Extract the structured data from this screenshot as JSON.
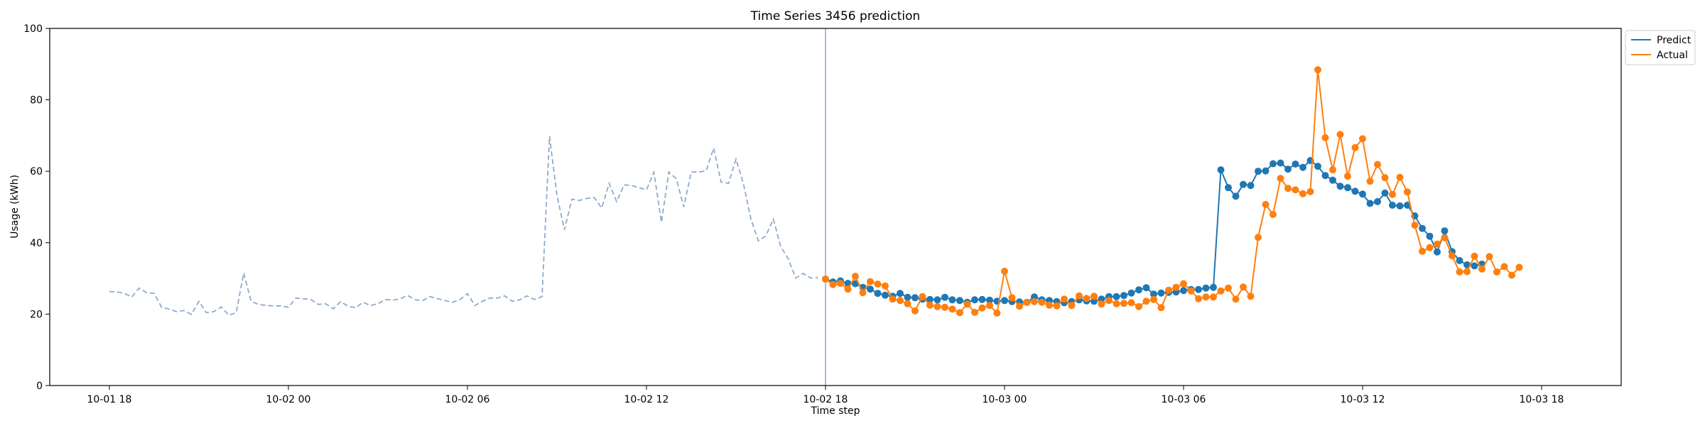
{
  "chart_data": {
    "type": "line",
    "title": "Time Series 3456 prediction",
    "xlabel": "Time step",
    "ylabel": "Usage (kWh)",
    "ylim": [
      0,
      100
    ],
    "xlim": [
      "2024-10-01 16:00",
      "2024-10-03 20:40"
    ],
    "xticks": [
      {
        "t": "2024-10-01 18:00",
        "label": "10-01 18"
      },
      {
        "t": "2024-10-02 00:00",
        "label": "10-02 00"
      },
      {
        "t": "2024-10-02 06:00",
        "label": "10-02 06"
      },
      {
        "t": "2024-10-02 12:00",
        "label": "10-02 12"
      },
      {
        "t": "2024-10-02 18:00",
        "label": "10-02 18"
      },
      {
        "t": "2024-10-03 00:00",
        "label": "10-03 00"
      },
      {
        "t": "2024-10-03 06:00",
        "label": "10-03 06"
      },
      {
        "t": "2024-10-03 12:00",
        "label": "10-03 12"
      },
      {
        "t": "2024-10-03 18:00",
        "label": "10-03 18"
      }
    ],
    "yticks": [
      0,
      20,
      40,
      60,
      80,
      100
    ],
    "vline": "2024-10-02 18:00",
    "grid": false,
    "legend_position": "outside-top-right",
    "history": {
      "start": "2024-10-01 18:00",
      "step_minutes": 15,
      "color": "#8faacc",
      "style": "dashed",
      "values": [
        26.3,
        26.2,
        25.8,
        24.8,
        27.3,
        26.0,
        25.8,
        21.9,
        21.4,
        20.7,
        21.0,
        19.9,
        23.6,
        20.4,
        20.7,
        22.0,
        19.7,
        20.4,
        31.5,
        23.6,
        22.7,
        22.4,
        22.3,
        22.3,
        21.9,
        24.5,
        24.3,
        24.1,
        22.7,
        22.9,
        21.5,
        23.5,
        22.2,
        21.8,
        23.3,
        22.4,
        22.9,
        24.1,
        23.9,
        24.3,
        25.2,
        24.0,
        23.8,
        24.9,
        24.3,
        23.8,
        23.3,
        24.1,
        25.7,
        22.4,
        23.6,
        24.5,
        24.5,
        25.1,
        23.6,
        24.0,
        25.1,
        24.1,
        24.9,
        69.8,
        53.2,
        43.6,
        52.2,
        51.8,
        52.4,
        52.6,
        49.7,
        56.6,
        51.5,
        56.2,
        56.0,
        55.4,
        54.8,
        59.7,
        45.7,
        59.8,
        57.9,
        50.0,
        59.8,
        59.8,
        60.1,
        66.5,
        57.0,
        56.6,
        63.4,
        56.5,
        46.6,
        40.5,
        41.9,
        46.6,
        38.9,
        35.5,
        30.1,
        31.4,
        30.1,
        30.2
      ]
    },
    "series": [
      {
        "name": "Predict",
        "color": "#1f77b4",
        "start": "2024-10-02 18:00",
        "step_minutes": 15,
        "values": [
          29.8,
          29.0,
          29.3,
          28.6,
          28.5,
          27.5,
          27.0,
          25.8,
          25.3,
          25.0,
          25.8,
          24.7,
          24.6,
          24.2,
          24.1,
          24.0,
          24.7,
          24.0,
          23.8,
          23.3,
          24.0,
          24.1,
          23.9,
          23.6,
          23.8,
          23.5,
          23.4,
          23.3,
          24.8,
          24.0,
          23.8,
          23.5,
          23.2,
          23.5,
          24.0,
          23.7,
          23.6,
          24.2,
          24.9,
          24.9,
          25.2,
          25.9,
          26.8,
          27.4,
          25.6,
          25.9,
          26.1,
          26.2,
          26.6,
          26.9,
          26.9,
          27.3,
          27.5,
          60.4,
          55.4,
          53.0,
          56.3,
          56.0,
          60.0,
          60.1,
          62.1,
          62.3,
          60.6,
          62.0,
          61.1,
          63.0,
          61.4,
          58.8,
          57.5,
          55.8,
          55.4,
          54.4,
          53.6,
          51.0,
          51.5,
          53.9,
          50.5,
          50.3,
          50.5,
          47.5,
          44.0,
          41.8,
          37.4,
          43.3,
          37.5,
          35.0,
          33.8,
          33.5,
          34.0
        ]
      },
      {
        "name": "Actual",
        "color": "#ff7f0e",
        "start": "2024-10-02 18:00",
        "step_minutes": 15,
        "values": [
          29.8,
          28.3,
          28.6,
          27.0,
          30.6,
          26.0,
          29.1,
          28.4,
          27.9,
          24.2,
          23.8,
          22.9,
          20.9,
          24.9,
          22.5,
          22.1,
          21.9,
          21.4,
          20.4,
          22.8,
          20.5,
          21.7,
          22.4,
          20.3,
          32.0,
          24.6,
          22.2,
          23.3,
          23.5,
          23.3,
          22.5,
          22.3,
          24.2,
          22.4,
          25.1,
          24.4,
          25.0,
          22.8,
          23.8,
          22.9,
          23.0,
          23.2,
          22.1,
          23.6,
          24.1,
          21.8,
          26.7,
          27.5,
          28.5,
          26.5,
          24.3,
          24.8,
          24.8,
          26.5,
          27.3,
          24.2,
          27.6,
          25.0,
          41.5,
          50.7,
          47.9,
          58.0,
          55.2,
          54.8,
          53.7,
          54.3,
          88.4,
          69.4,
          60.4,
          70.3,
          58.6,
          66.6,
          69.1,
          57.2,
          61.9,
          58.2,
          53.5,
          58.3,
          54.2,
          44.9,
          37.6,
          38.6,
          39.6,
          41.4,
          36.3,
          31.8,
          31.9,
          36.2,
          32.6,
          36.1,
          31.8,
          33.3,
          30.9,
          33.1
        ]
      }
    ]
  }
}
